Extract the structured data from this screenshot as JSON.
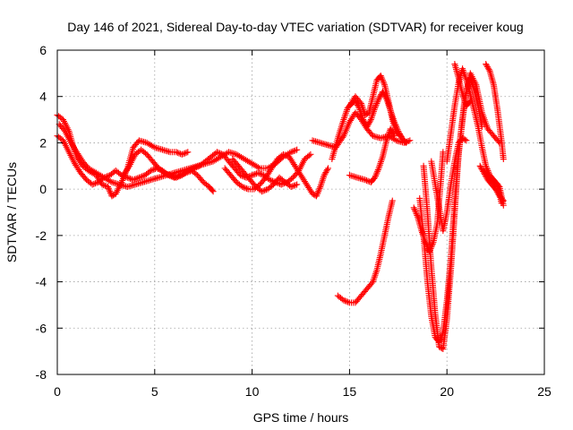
{
  "chart_data": {
    "type": "scatter",
    "title": "Day 146 of 2021, Sidereal Day-to-day VTEC variation (SDTVAR) for receiver koug",
    "xlabel": "GPS time / hours",
    "ylabel": "SDTVAR / TECUs",
    "xlim": [
      0,
      25
    ],
    "ylim": [
      -8,
      6
    ],
    "xticks": [
      0,
      5,
      10,
      15,
      20,
      25
    ],
    "yticks": [
      -8,
      -6,
      -4,
      -2,
      0,
      2,
      4,
      6
    ],
    "xtick_labels": [
      "0",
      "5",
      "10",
      "15",
      "20",
      "25"
    ],
    "ytick_labels": [
      "-8",
      "-6",
      "-4",
      "-2",
      "0",
      "2",
      "4",
      "6"
    ],
    "grid": true,
    "marker": "+",
    "color": "#ff0000",
    "series": [
      {
        "points": [
          [
            0.0,
            3.2
          ],
          [
            0.3,
            3.0
          ],
          [
            0.6,
            2.5
          ],
          [
            0.8,
            1.9
          ],
          [
            1.0,
            1.4
          ],
          [
            1.3,
            1.0
          ],
          [
            1.6,
            0.8
          ],
          [
            2.0,
            0.6
          ],
          [
            2.3,
            0.2
          ],
          [
            2.6,
            0.1
          ],
          [
            2.8,
            -0.3
          ],
          [
            3.0,
            -0.2
          ],
          [
            3.3,
            0.3
          ],
          [
            3.6,
            0.9
          ],
          [
            3.9,
            1.8
          ],
          [
            4.2,
            2.1
          ],
          [
            4.6,
            2.0
          ],
          [
            5.0,
            1.8
          ],
          [
            5.4,
            1.7
          ],
          [
            5.8,
            1.6
          ],
          [
            6.1,
            1.6
          ],
          [
            6.4,
            1.5
          ],
          [
            6.7,
            1.6
          ]
        ]
      },
      {
        "points": [
          [
            0.0,
            2.3
          ],
          [
            0.3,
            2.1
          ],
          [
            0.6,
            1.6
          ],
          [
            0.9,
            1.1
          ],
          [
            1.2,
            0.7
          ],
          [
            1.5,
            0.4
          ],
          [
            1.8,
            0.2
          ],
          [
            2.1,
            0.3
          ],
          [
            2.4,
            0.5
          ],
          [
            2.7,
            0.6
          ],
          [
            3.0,
            0.8
          ],
          [
            3.3,
            0.6
          ],
          [
            3.6,
            0.5
          ],
          [
            3.9,
            0.4
          ],
          [
            4.2,
            0.5
          ],
          [
            4.5,
            0.6
          ],
          [
            4.8,
            0.8
          ],
          [
            5.1,
            0.9
          ],
          [
            5.4,
            0.8
          ],
          [
            5.7,
            0.6
          ],
          [
            6.0,
            0.5
          ],
          [
            6.3,
            0.6
          ],
          [
            6.6,
            0.7
          ],
          [
            6.9,
            0.8
          ],
          [
            7.2,
            0.6
          ],
          [
            7.5,
            0.3
          ],
          [
            7.8,
            0.1
          ],
          [
            8.0,
            -0.1
          ]
        ]
      },
      {
        "points": [
          [
            0.1,
            2.8
          ],
          [
            0.4,
            2.5
          ],
          [
            0.7,
            2.0
          ],
          [
            1.0,
            1.6
          ],
          [
            1.3,
            1.2
          ],
          [
            1.6,
            0.9
          ],
          [
            2.0,
            0.7
          ],
          [
            2.4,
            0.5
          ],
          [
            2.8,
            0.3
          ],
          [
            3.2,
            0.2
          ],
          [
            3.6,
            0.1
          ],
          [
            4.0,
            0.2
          ],
          [
            4.4,
            0.3
          ],
          [
            4.8,
            0.4
          ],
          [
            5.2,
            0.5
          ],
          [
            5.6,
            0.6
          ],
          [
            6.0,
            0.7
          ],
          [
            6.4,
            0.8
          ],
          [
            6.8,
            0.9
          ],
          [
            7.2,
            1.0
          ],
          [
            7.6,
            1.1
          ],
          [
            8.0,
            1.2
          ],
          [
            8.4,
            1.4
          ],
          [
            8.8,
            1.6
          ],
          [
            9.2,
            1.5
          ],
          [
            9.6,
            1.3
          ],
          [
            10.0,
            1.1
          ],
          [
            10.4,
            0.9
          ],
          [
            10.8,
            0.9
          ],
          [
            11.2,
            1.1
          ],
          [
            11.6,
            1.4
          ],
          [
            12.0,
            1.6
          ],
          [
            12.3,
            1.7
          ]
        ]
      },
      {
        "points": [
          [
            3.4,
            0.6
          ],
          [
            3.7,
            1.0
          ],
          [
            4.0,
            1.5
          ],
          [
            4.3,
            1.7
          ],
          [
            4.6,
            1.5
          ],
          [
            4.9,
            1.2
          ],
          [
            5.2,
            0.9
          ],
          [
            5.5,
            0.7
          ],
          [
            5.8,
            0.6
          ],
          [
            6.1,
            0.5
          ],
          [
            6.4,
            0.6
          ],
          [
            6.7,
            0.8
          ],
          [
            7.0,
            0.9
          ],
          [
            7.3,
            1.0
          ],
          [
            7.6,
            1.2
          ],
          [
            7.9,
            1.4
          ],
          [
            8.2,
            1.6
          ],
          [
            8.5,
            1.5
          ],
          [
            8.8,
            1.2
          ],
          [
            9.1,
            0.9
          ],
          [
            9.4,
            0.6
          ],
          [
            9.7,
            0.5
          ],
          [
            10.0,
            0.6
          ],
          [
            10.3,
            0.7
          ],
          [
            10.6,
            0.6
          ],
          [
            10.9,
            0.4
          ],
          [
            11.2,
            0.3
          ],
          [
            11.5,
            0.2
          ],
          [
            11.8,
            0.3
          ],
          [
            12.1,
            0.5
          ],
          [
            12.4,
            0.8
          ],
          [
            12.7,
            1.3
          ],
          [
            13.0,
            1.5
          ]
        ]
      },
      {
        "points": [
          [
            8.6,
            0.9
          ],
          [
            8.9,
            0.6
          ],
          [
            9.2,
            0.3
          ],
          [
            9.5,
            0.1
          ],
          [
            9.8,
            0.0
          ],
          [
            10.1,
            0.0
          ],
          [
            10.4,
            0.2
          ],
          [
            10.7,
            0.5
          ],
          [
            11.0,
            0.9
          ],
          [
            11.3,
            1.3
          ],
          [
            11.6,
            1.5
          ],
          [
            11.9,
            1.4
          ],
          [
            12.2,
            1.0
          ],
          [
            12.5,
            0.6
          ],
          [
            12.8,
            0.2
          ],
          [
            13.1,
            -0.2
          ],
          [
            13.3,
            -0.3
          ],
          [
            13.5,
            0.1
          ],
          [
            13.7,
            0.6
          ],
          [
            13.9,
            0.9
          ]
        ]
      },
      {
        "points": [
          [
            9.0,
            1.3
          ],
          [
            9.3,
            1.0
          ],
          [
            9.6,
            0.7
          ],
          [
            9.9,
            0.4
          ],
          [
            10.2,
            0.1
          ],
          [
            10.5,
            -0.1
          ],
          [
            10.8,
            0.0
          ],
          [
            11.1,
            0.2
          ],
          [
            11.4,
            0.5
          ],
          [
            11.7,
            0.3
          ],
          [
            12.0,
            0.1
          ],
          [
            12.3,
            0.2
          ]
        ]
      },
      {
        "points": [
          [
            13.1,
            2.1
          ],
          [
            13.5,
            2.0
          ],
          [
            13.9,
            1.9
          ],
          [
            14.3,
            1.8
          ],
          [
            14.7,
            2.3
          ],
          [
            15.0,
            2.9
          ],
          [
            15.3,
            3.3
          ],
          [
            15.6,
            3.0
          ],
          [
            15.9,
            2.6
          ],
          [
            16.2,
            2.3
          ],
          [
            16.6,
            2.2
          ],
          [
            17.0,
            2.3
          ],
          [
            17.4,
            2.1
          ],
          [
            17.8,
            2.0
          ],
          [
            18.1,
            2.1
          ]
        ]
      },
      {
        "points": [
          [
            14.1,
            1.3
          ],
          [
            14.4,
            2.2
          ],
          [
            14.7,
            3.0
          ],
          [
            14.9,
            3.5
          ],
          [
            15.1,
            3.7
          ],
          [
            15.3,
            3.8
          ],
          [
            15.5,
            3.5
          ],
          [
            15.7,
            3.0
          ],
          [
            15.9,
            2.7
          ],
          [
            16.1,
            3.0
          ],
          [
            16.3,
            3.5
          ],
          [
            16.5,
            3.9
          ],
          [
            16.7,
            4.2
          ],
          [
            16.9,
            3.9
          ],
          [
            17.1,
            3.4
          ],
          [
            17.3,
            2.9
          ],
          [
            17.5,
            2.5
          ],
          [
            17.7,
            2.2
          ],
          [
            17.9,
            2.0
          ]
        ]
      },
      {
        "points": [
          [
            15.0,
            3.6
          ],
          [
            15.3,
            4.0
          ],
          [
            15.6,
            3.7
          ],
          [
            15.8,
            3.2
          ],
          [
            16.0,
            3.3
          ],
          [
            16.2,
            4.0
          ],
          [
            16.4,
            4.7
          ],
          [
            16.6,
            4.9
          ],
          [
            16.8,
            4.5
          ],
          [
            17.0,
            3.8
          ],
          [
            17.2,
            3.0
          ],
          [
            17.4,
            2.5
          ],
          [
            17.6,
            2.3
          ]
        ]
      },
      {
        "points": [
          [
            15.0,
            0.6
          ],
          [
            15.4,
            0.5
          ],
          [
            15.8,
            0.4
          ],
          [
            16.1,
            0.3
          ],
          [
            16.3,
            0.5
          ],
          [
            16.5,
            0.9
          ],
          [
            16.7,
            1.4
          ],
          [
            16.9,
            2.1
          ],
          [
            17.1,
            2.6
          ],
          [
            17.3,
            2.3
          ]
        ]
      },
      {
        "points": [
          [
            14.4,
            -4.6
          ],
          [
            14.7,
            -4.8
          ],
          [
            15.0,
            -4.9
          ],
          [
            15.3,
            -4.9
          ],
          [
            15.6,
            -4.6
          ],
          [
            15.9,
            -4.3
          ],
          [
            16.2,
            -4.0
          ],
          [
            16.4,
            -3.5
          ],
          [
            16.6,
            -2.8
          ],
          [
            16.8,
            -2.0
          ],
          [
            17.0,
            -1.2
          ],
          [
            17.2,
            -0.5
          ]
        ]
      },
      {
        "points": [
          [
            18.3,
            -0.8
          ],
          [
            18.5,
            -1.2
          ],
          [
            18.7,
            -1.8
          ],
          [
            18.9,
            -2.3
          ],
          [
            19.1,
            -2.7
          ],
          [
            19.3,
            -2.3
          ],
          [
            19.5,
            -1.5
          ],
          [
            19.6,
            -0.5
          ],
          [
            19.7,
            0.5
          ],
          [
            19.8,
            1.6
          ]
        ]
      },
      {
        "points": [
          [
            18.6,
            -0.4
          ],
          [
            18.8,
            -2.0
          ],
          [
            19.0,
            -4.0
          ],
          [
            19.2,
            -5.5
          ],
          [
            19.4,
            -6.4
          ],
          [
            19.6,
            -6.6
          ],
          [
            19.8,
            -6.2
          ],
          [
            20.0,
            -4.8
          ],
          [
            20.2,
            -3.0
          ],
          [
            20.4,
            -0.5
          ],
          [
            20.6,
            1.5
          ],
          [
            20.8,
            3.0
          ],
          [
            21.0,
            4.2
          ],
          [
            21.2,
            4.8
          ],
          [
            21.4,
            4.3
          ],
          [
            21.6,
            3.6
          ],
          [
            21.8,
            2.7
          ]
        ]
      },
      {
        "points": [
          [
            18.8,
            1.0
          ],
          [
            19.0,
            -1.0
          ],
          [
            19.2,
            -3.4
          ],
          [
            19.4,
            -5.4
          ],
          [
            19.6,
            -6.8
          ],
          [
            19.8,
            -6.9
          ],
          [
            20.0,
            -5.6
          ],
          [
            20.2,
            -3.5
          ],
          [
            20.4,
            -1.0
          ],
          [
            20.6,
            1.6
          ],
          [
            20.9,
            3.8
          ],
          [
            21.2,
            5.0
          ],
          [
            21.5,
            4.5
          ],
          [
            21.8,
            3.3
          ],
          [
            22.1,
            2.6
          ],
          [
            22.4,
            2.3
          ],
          [
            22.7,
            2.0
          ]
        ]
      },
      {
        "points": [
          [
            19.2,
            1.2
          ],
          [
            19.5,
            -0.3
          ],
          [
            19.8,
            -1.8
          ],
          [
            20.0,
            -1.0
          ],
          [
            20.2,
            0.2
          ],
          [
            20.4,
            1.2
          ],
          [
            20.6,
            2.0
          ],
          [
            20.8,
            2.2
          ],
          [
            21.0,
            2.1
          ]
        ]
      },
      {
        "points": [
          [
            20.0,
            1.2
          ],
          [
            20.2,
            2.4
          ],
          [
            20.4,
            3.6
          ],
          [
            20.6,
            4.6
          ],
          [
            20.8,
            5.2
          ],
          [
            21.0,
            4.7
          ],
          [
            21.2,
            4.1
          ],
          [
            21.4,
            3.4
          ],
          [
            21.6,
            2.7
          ],
          [
            21.8,
            1.8
          ],
          [
            22.0,
            1.0
          ],
          [
            22.2,
            0.6
          ],
          [
            22.4,
            0.4
          ],
          [
            22.6,
            0.2
          ],
          [
            22.8,
            -0.6
          ]
        ]
      },
      {
        "points": [
          [
            20.4,
            5.4
          ],
          [
            20.6,
            4.8
          ],
          [
            20.8,
            4.1
          ],
          [
            21.0,
            3.6
          ],
          [
            21.2,
            3.8
          ]
        ]
      },
      {
        "points": [
          [
            21.7,
            1.0
          ],
          [
            21.9,
            0.7
          ],
          [
            22.1,
            0.4
          ],
          [
            22.3,
            0.2
          ],
          [
            22.5,
            0.0
          ],
          [
            22.7,
            -0.3
          ],
          [
            22.9,
            -0.5
          ]
        ]
      },
      {
        "points": [
          [
            22.0,
            5.4
          ],
          [
            22.2,
            5.1
          ],
          [
            22.4,
            4.5
          ],
          [
            22.6,
            3.4
          ],
          [
            22.8,
            2.1
          ],
          [
            22.9,
            1.3
          ]
        ]
      },
      {
        "points": [
          [
            21.9,
            0.8
          ],
          [
            22.1,
            0.6
          ],
          [
            22.3,
            0.4
          ],
          [
            22.5,
            0.3
          ],
          [
            22.7,
            0.1
          ],
          [
            22.9,
            -0.7
          ]
        ]
      }
    ]
  }
}
